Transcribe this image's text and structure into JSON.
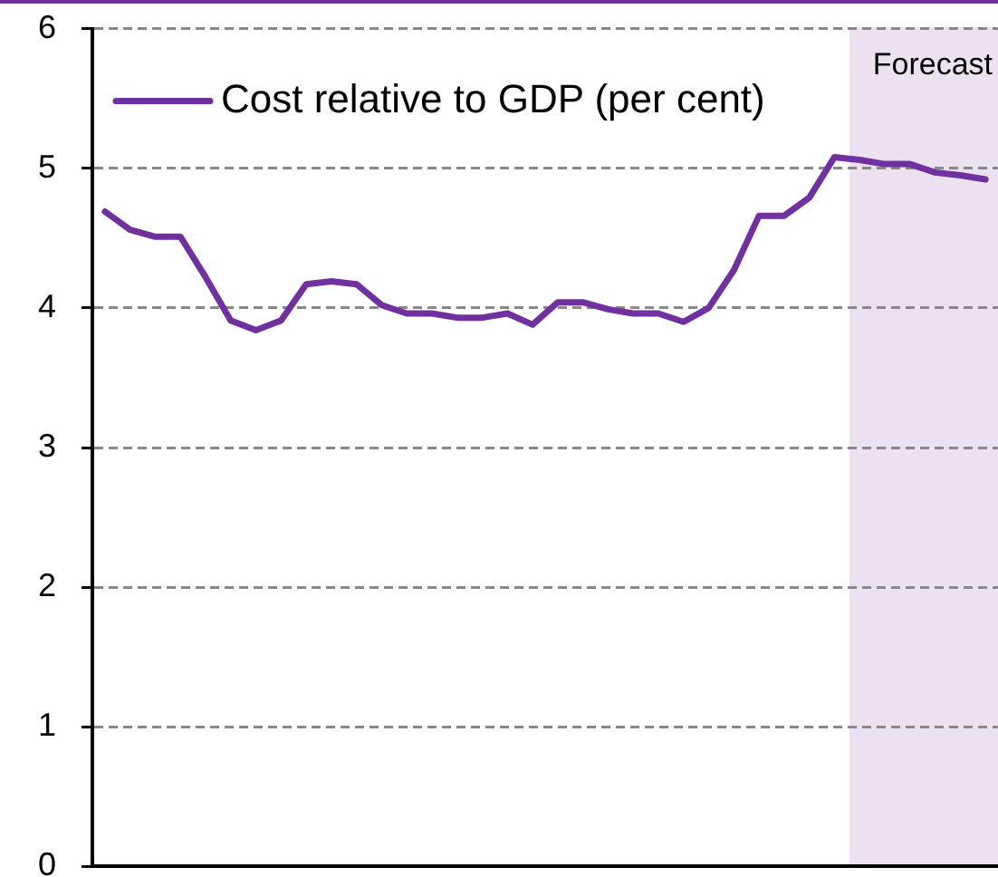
{
  "chart_data": {
    "type": "line",
    "categories": [
      null,
      null,
      null,
      null,
      null,
      null,
      null,
      null,
      null,
      null,
      null,
      null,
      null,
      null,
      null,
      null,
      null,
      null,
      null,
      null,
      null,
      null,
      null,
      null,
      null,
      null,
      null,
      null,
      null,
      null,
      null,
      null,
      null,
      null,
      null,
      null
    ],
    "series": [
      {
        "name": "Cost relative to GDP (per cent)",
        "color": "#7030a0",
        "values": [
          4.69,
          4.56,
          4.51,
          4.51,
          4.22,
          3.91,
          3.84,
          3.91,
          4.17,
          4.19,
          4.17,
          4.02,
          3.96,
          3.96,
          3.93,
          3.93,
          3.96,
          3.88,
          4.04,
          4.04,
          3.99,
          3.96,
          3.96,
          3.9,
          4.0,
          4.27,
          4.66,
          4.66,
          4.79,
          5.08,
          5.06,
          5.03,
          5.03,
          4.97,
          4.95,
          4.92
        ]
      }
    ],
    "ylim": [
      0,
      6
    ],
    "yticks": [
      0,
      1,
      2,
      3,
      4,
      5,
      6
    ],
    "tick_labels": "y",
    "annotations": [
      "Forecast"
    ],
    "grid": "y",
    "legend": "top left",
    "marker": "none",
    "line_style": "solid"
  }
}
